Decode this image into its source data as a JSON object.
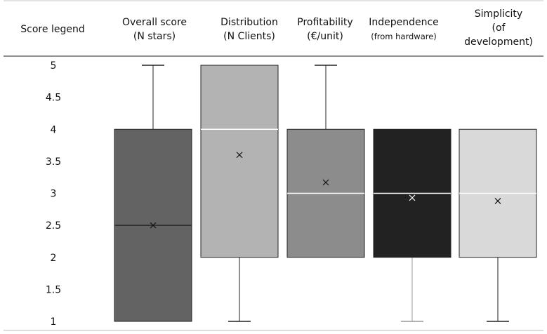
{
  "chart_data": {
    "type": "boxplot",
    "legend_title": "Score legend",
    "y_ticks": [
      "5",
      "4.5",
      "4",
      "3.5",
      "3",
      "2.5",
      "2",
      "1.5",
      "1"
    ],
    "ylim": [
      1,
      5
    ],
    "grid": false,
    "categories": [
      {
        "line1": "Overall score",
        "line2": "(N stars)",
        "line3": ""
      },
      {
        "line1": "Distribution",
        "line2": "(N Clients)",
        "line3": ""
      },
      {
        "line1": "Profitability",
        "line2": "(€/unit)",
        "line3": ""
      },
      {
        "line1": "Independence",
        "line2": "(from hardware)",
        "line3": ""
      },
      {
        "line1": "Simplicity",
        "line2": "(of",
        "line3": "development)"
      }
    ],
    "boxes": [
      {
        "min": 1,
        "q1": 1,
        "median": 2.5,
        "q3": 4,
        "max": 5,
        "mean": 2.5,
        "fill": "#636363",
        "whisker_color": "#222222",
        "median_color": "#2a2a2a"
      },
      {
        "min": 1,
        "q1": 2,
        "median": 4,
        "q3": 5,
        "max": 5,
        "mean": 3.6,
        "fill": "#b3b3b3",
        "whisker_color": "#222222",
        "median_color": "#ffffff"
      },
      {
        "min": 2,
        "q1": 2,
        "median": 3,
        "q3": 4,
        "max": 5,
        "mean": 3.17,
        "fill": "#8c8c8c",
        "whisker_color": "#222222",
        "median_color": "#ffffff"
      },
      {
        "min": 1,
        "q1": 2,
        "median": 3,
        "q3": 4,
        "max": 4,
        "mean": 2.93,
        "fill": "#222222",
        "whisker_color": "#999999",
        "median_color": "#ffffff"
      },
      {
        "min": 1,
        "q1": 2,
        "median": 3,
        "q3": 4,
        "max": 4,
        "mean": 2.88,
        "fill": "#d9d9d9",
        "whisker_color": "#222222",
        "median_color": "#ffffff"
      }
    ]
  }
}
